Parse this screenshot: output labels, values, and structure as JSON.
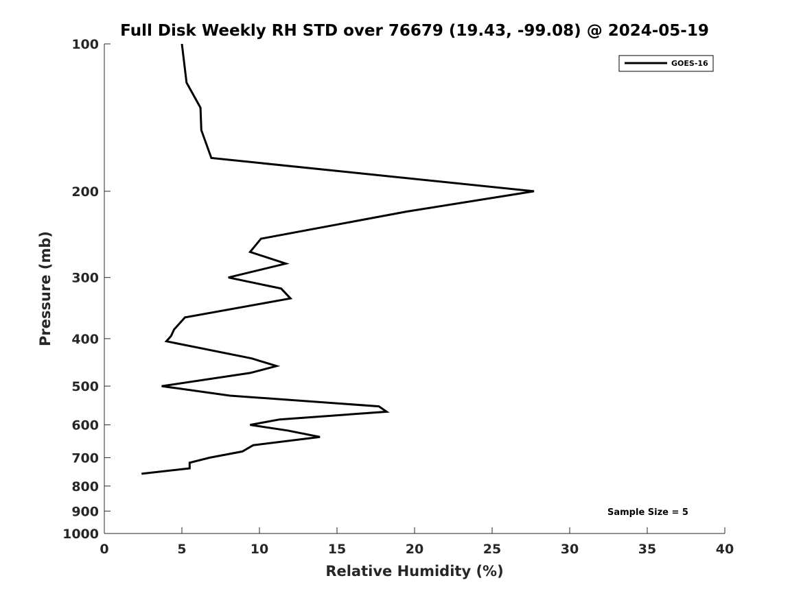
{
  "chart_data": {
    "type": "line",
    "title": "Full Disk Weekly RH STD over 76679 (19.43, -99.08) @ 2024-05-19",
    "xlabel": "Relative Humidity (%)",
    "ylabel": "Pressure (mb)",
    "xlim": [
      0,
      40
    ],
    "ylim": [
      100,
      1000
    ],
    "yscale": "log",
    "y_reversed": true,
    "grid": false,
    "legend_position": "top-right",
    "x_ticks": [
      "0",
      "5",
      "10",
      "15",
      "20",
      "25",
      "30",
      "35",
      "40"
    ],
    "x_tick_values": [
      0,
      5,
      10,
      15,
      20,
      25,
      30,
      35,
      40
    ],
    "y_ticks": [
      "100",
      "200",
      "300",
      "400",
      "500",
      "600",
      "700",
      "800",
      "900",
      "1000"
    ],
    "y_tick_values": [
      100,
      200,
      300,
      400,
      500,
      600,
      700,
      800,
      900,
      1000
    ],
    "series": [
      {
        "name": "GOES-16",
        "color": "#000000",
        "points": [
          [
            5.0,
            100
          ],
          [
            5.3,
            120
          ],
          [
            6.2,
            135
          ],
          [
            6.25,
            150
          ],
          [
            6.9,
            171
          ],
          [
            27.7,
            200
          ],
          [
            19.5,
            220
          ],
          [
            10.1,
            250
          ],
          [
            9.4,
            266
          ],
          [
            11.7,
            281
          ],
          [
            8.0,
            300
          ],
          [
            11.4,
            316
          ],
          [
            12.0,
            331
          ],
          [
            5.2,
            362
          ],
          [
            4.5,
            383
          ],
          [
            4.3,
            395
          ],
          [
            4.0,
            405
          ],
          [
            9.5,
            439
          ],
          [
            11.1,
            455
          ],
          [
            9.4,
            470
          ],
          [
            3.7,
            500
          ],
          [
            8.1,
            523
          ],
          [
            17.7,
            550
          ],
          [
            18.2,
            564
          ],
          [
            11.3,
            585
          ],
          [
            9.4,
            600
          ],
          [
            11.8,
            616
          ],
          [
            13.9,
            635
          ],
          [
            9.6,
            660
          ],
          [
            8.9,
            680
          ],
          [
            6.8,
            700
          ],
          [
            5.5,
            717
          ],
          [
            5.5,
            736
          ],
          [
            2.4,
            755
          ]
        ]
      }
    ],
    "annotations": [
      "Sample Size = 5"
    ]
  }
}
